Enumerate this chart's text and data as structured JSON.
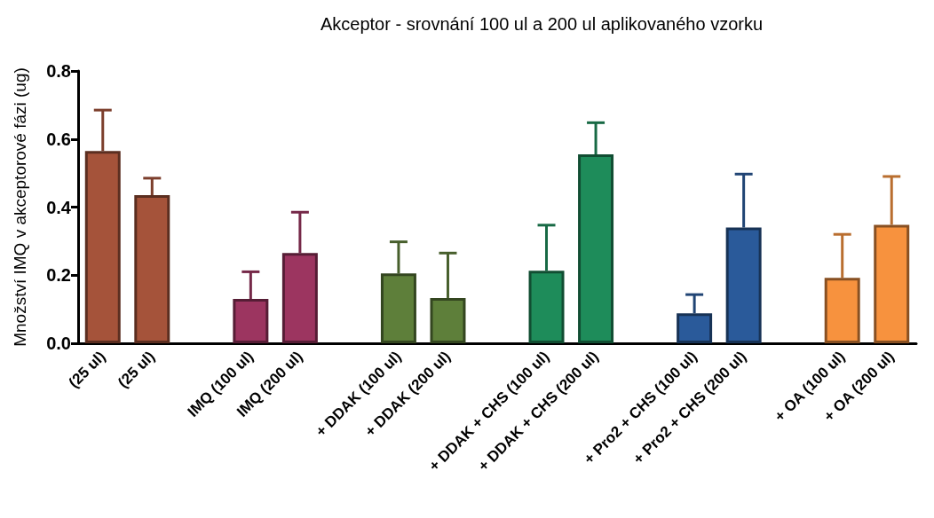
{
  "chart_data": {
    "type": "bar",
    "title": "Akceptor - srovnání 100 ul a 200 ul aplikovaného vzorku",
    "ylabel": "Množství IMQ v akceptorové fázi (ug)",
    "categories": [
      "(25 ul)",
      "(25 ul)",
      null,
      "IMQ (100 ul)",
      "IMQ (200 ul)",
      null,
      "+ DDAK (100 ul)",
      "+ DDAK (200 ul)",
      null,
      "+ DDAK + CHS (100 ul)",
      "+ DDAK + CHS (200 ul)",
      null,
      "+ Pro2 + CHS (100 ul)",
      "+ Pro2 + CHS (200 ul)",
      null,
      "+ OA (100 ul)",
      "+ OA (200 ul)"
    ],
    "values": [
      0.565,
      0.435,
      null,
      0.13,
      0.265,
      null,
      0.205,
      0.133,
      null,
      0.213,
      0.555,
      null,
      0.088,
      0.34,
      null,
      0.192,
      0.348
    ],
    "errors": [
      [
        0.565,
        0.685
      ],
      [
        0.435,
        0.485
      ],
      null,
      [
        0.13,
        0.21
      ],
      [
        0.265,
        0.385
      ],
      null,
      [
        0.205,
        0.298
      ],
      [
        0.133,
        0.265
      ],
      null,
      [
        0.213,
        0.347
      ],
      [
        0.555,
        0.648
      ],
      null,
      [
        0.088,
        0.143
      ],
      [
        0.34,
        0.497
      ],
      null,
      [
        0.192,
        0.32
      ],
      [
        0.348,
        0.49
      ]
    ],
    "colors": [
      "#a5533a",
      "#a5533a",
      null,
      "#9c3560",
      "#9c3560",
      null,
      "#5e7f3a",
      "#5e7f3a",
      null,
      "#1e8c5a",
      "#1e8c5a",
      null,
      "#2a5a9a",
      "#2a5a9a",
      null,
      "#f7923e",
      "#f7923e"
    ],
    "ylim": [
      0,
      0.8
    ],
    "yticks": [
      {
        "value": 0,
        "label": "0.0"
      },
      {
        "value": 0.2,
        "label": "0.2"
      },
      {
        "value": 0.4,
        "label": "0.4"
      },
      {
        "value": 0.6,
        "label": "0.6"
      },
      {
        "value": 0.8,
        "label": "0.8"
      }
    ],
    "grid": false
  }
}
